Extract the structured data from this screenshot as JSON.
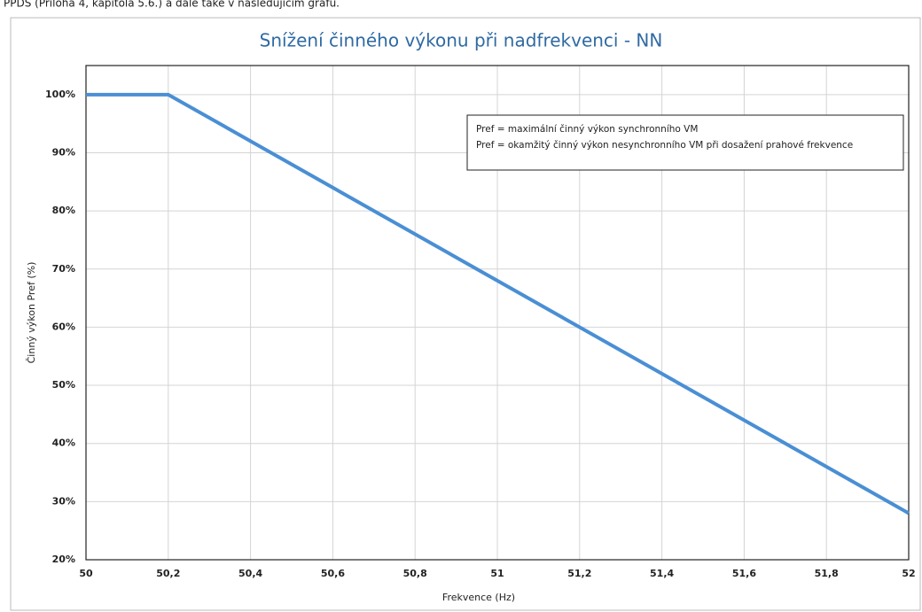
{
  "caption": "PPDS (Příloha 4, kapitola 5.6.) a dále také v následujícím grafu.",
  "chart_data": {
    "type": "line",
    "title": "Snížení činného výkonu při nadfrekvenci - NN",
    "x_label": "Frekvence (Hz)",
    "y_label": "Činný výkon Pref (%)",
    "legend_text": [
      "Pref = maximální činný výkon synchronního VM",
      "Pref = okamžitý činný výkon nesynchronního VM při dosažení prahové frekvence"
    ],
    "x": [
      50,
      50.2,
      52
    ],
    "series": [
      {
        "color": "#4a8fd4",
        "values": [
          100,
          100,
          28
        ]
      }
    ],
    "xlim": [
      50,
      52
    ],
    "xticks": [
      50,
      {
        "value": 50.2,
        "label": "50,2"
      },
      {
        "value": 50.4,
        "label": "50,4"
      },
      {
        "value": 50.6,
        "label": "50,6"
      },
      {
        "value": 50.8,
        "label": "50,8"
      },
      51,
      {
        "value": 51.2,
        "label": "51,2"
      },
      {
        "value": 51.4,
        "label": "51,4"
      },
      {
        "value": 51.6,
        "label": "51,6"
      },
      {
        "value": 51.8,
        "label": "51,8"
      },
      52
    ],
    "ylim": [
      20,
      105
    ],
    "yticks": [
      {
        "value": 20,
        "label": "20%"
      },
      {
        "value": 30,
        "label": "30%"
      },
      {
        "value": 40,
        "label": "40%"
      },
      {
        "value": 50,
        "label": "50%"
      },
      {
        "value": 60,
        "label": "60%"
      },
      {
        "value": 70,
        "label": "70%"
      },
      {
        "value": 80,
        "label": "80%"
      },
      {
        "value": 90,
        "label": "90%"
      },
      {
        "value": 100,
        "label": "100%"
      }
    ],
    "grid": true
  }
}
